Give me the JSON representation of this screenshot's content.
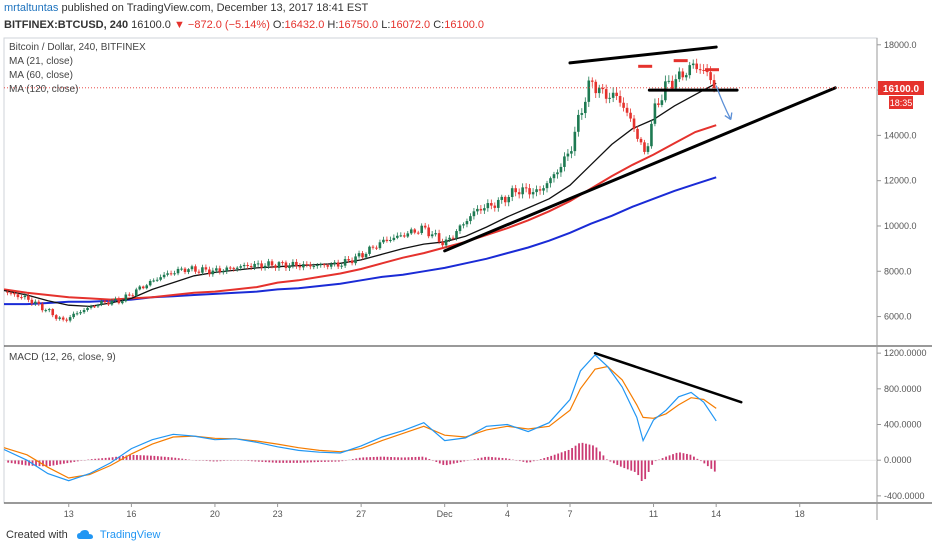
{
  "header": {
    "author": "mrtaltuntas",
    "published_text": "published on TradingView.com, December 13, 2017 18:41 EST",
    "symbol": "BITFINEX:BTCUSD, 240",
    "last": "16100.0",
    "change": "▼ −872.0 (−5.14%)",
    "open_label": "O:",
    "open": "16432.0",
    "high_label": "H:",
    "high": "16750.0",
    "low_label": "L:",
    "low": "16072.0",
    "close_label": "C:",
    "close": "16100.0"
  },
  "legend": {
    "symbol_line": "Bitcoin / Dollar, 240, BITFINEX",
    "ma21": "MA (21, close)",
    "ma60": "MA (60, close)",
    "ma120": "MA (120, close)",
    "macd": "MACD (12, 26, close, 9)"
  },
  "price_badge": {
    "price": "16100.0",
    "countdown": "18:35",
    "color": "#e5322d"
  },
  "footer": {
    "created_with": "Created with",
    "brand": "TradingView"
  },
  "colors": {
    "up": "#1d7a52",
    "down": "#e5322d",
    "ma21": "#111111",
    "ma60": "#e5322d",
    "ma120": "#1a2bd6",
    "macd_line": "#2196f3",
    "signal_line": "#f57c00",
    "hist_pos": "#c2185b",
    "hist_neg": "#c2185b",
    "arrow": "#5b8fd6"
  },
  "chart_data": [
    {
      "type": "candlestick",
      "title": "Bitcoin / Dollar, 240, BITFINEX",
      "x_ticks": [
        "13",
        "16",
        "20",
        "23",
        "27",
        "Dec",
        "4",
        "7",
        "11",
        "14",
        "18"
      ],
      "x_tick_days": [
        13,
        16,
        20,
        23,
        27,
        31,
        34,
        37,
        41,
        44,
        48
      ],
      "x_range_days": [
        9.9,
        51.7
      ],
      "y_ticks": [
        6000,
        8000,
        10000,
        12000,
        14000,
        16000,
        18000
      ],
      "y_tick_labels": [
        "6000.0",
        "8000.0",
        "10000.0",
        "12000.0",
        "14000.0",
        "16000.0",
        "18000.0"
      ],
      "ylim": [
        4700,
        18300
      ],
      "last_price": 16100,
      "close_anchors": [
        [
          9.9,
          7100
        ],
        [
          11,
          6800
        ],
        [
          12,
          6250
        ],
        [
          12.7,
          5800
        ],
        [
          13.5,
          6200
        ],
        [
          14.5,
          6600
        ],
        [
          15.5,
          6700
        ],
        [
          16.5,
          7300
        ],
        [
          17.5,
          7800
        ],
        [
          18.5,
          8100
        ],
        [
          20,
          8000
        ],
        [
          21.5,
          8250
        ],
        [
          23,
          8300
        ],
        [
          24.5,
          8250
        ],
        [
          26,
          8300
        ],
        [
          27,
          8700
        ],
        [
          28,
          9300
        ],
        [
          29,
          9600
        ],
        [
          30,
          9900
        ],
        [
          31,
          9200
        ],
        [
          31.6,
          9800
        ],
        [
          32.5,
          10700
        ],
        [
          33.5,
          11000
        ],
        [
          34.5,
          11600
        ],
        [
          35.5,
          11500
        ],
        [
          36.3,
          12300
        ],
        [
          37,
          13300
        ],
        [
          37.5,
          15000
        ],
        [
          38,
          16400
        ],
        [
          38.6,
          15800
        ],
        [
          39.3,
          15700
        ],
        [
          40,
          14500
        ],
        [
          40.6,
          13100
        ],
        [
          41,
          15000
        ],
        [
          41.6,
          16200
        ],
        [
          42.3,
          16600
        ],
        [
          42.9,
          17100
        ],
        [
          43.5,
          16800
        ],
        [
          44,
          16100
        ]
      ],
      "ma21": [
        [
          9.9,
          7150
        ],
        [
          11,
          6950
        ],
        [
          12,
          6700
        ],
        [
          13,
          6500
        ],
        [
          14,
          6450
        ],
        [
          15,
          6600
        ],
        [
          16,
          6800
        ],
        [
          17,
          7200
        ],
        [
          18,
          7500
        ],
        [
          19,
          7800
        ],
        [
          20,
          7950
        ],
        [
          21,
          8050
        ],
        [
          22,
          8150
        ],
        [
          23,
          8200
        ],
        [
          24,
          8250
        ],
        [
          25,
          8300
        ],
        [
          26,
          8350
        ],
        [
          27,
          8500
        ],
        [
          28,
          8750
        ],
        [
          29,
          9000
        ],
        [
          30,
          9200
        ],
        [
          31,
          9300
        ],
        [
          32,
          9550
        ],
        [
          33,
          9950
        ],
        [
          34,
          10400
        ],
        [
          35,
          10800
        ],
        [
          36,
          11200
        ],
        [
          37,
          11800
        ],
        [
          38,
          12700
        ],
        [
          39,
          13600
        ],
        [
          40,
          14300
        ],
        [
          41,
          14700
        ],
        [
          42,
          15300
        ],
        [
          43,
          15800
        ],
        [
          43.6,
          16100
        ],
        [
          44,
          16300
        ]
      ],
      "ma60": [
        [
          9.9,
          7200
        ],
        [
          11,
          7050
        ],
        [
          12,
          6950
        ],
        [
          13,
          6850
        ],
        [
          14,
          6800
        ],
        [
          15,
          6750
        ],
        [
          16,
          6800
        ],
        [
          17,
          6850
        ],
        [
          18,
          6950
        ],
        [
          19,
          7050
        ],
        [
          20,
          7100
        ],
        [
          21,
          7200
        ],
        [
          22,
          7300
        ],
        [
          23,
          7500
        ],
        [
          24,
          7600
        ],
        [
          25,
          7750
        ],
        [
          26,
          7900
        ],
        [
          27,
          8100
        ],
        [
          28,
          8350
        ],
        [
          29,
          8600
        ],
        [
          30,
          8800
        ],
        [
          31,
          9050
        ],
        [
          32,
          9300
        ],
        [
          33,
          9600
        ],
        [
          34,
          9900
        ],
        [
          35,
          10250
        ],
        [
          36,
          10650
        ],
        [
          37,
          11100
        ],
        [
          38,
          11650
        ],
        [
          39,
          12200
        ],
        [
          40,
          12700
        ],
        [
          41,
          13150
        ],
        [
          42,
          13650
        ],
        [
          43,
          14150
        ],
        [
          44,
          14450
        ]
      ],
      "ma120": [
        [
          9.9,
          6550
        ],
        [
          11,
          6550
        ],
        [
          12,
          6600
        ],
        [
          13,
          6650
        ],
        [
          14,
          6650
        ],
        [
          15,
          6700
        ],
        [
          16,
          6750
        ],
        [
          17,
          6850
        ],
        [
          18,
          6900
        ],
        [
          19,
          6950
        ],
        [
          20,
          7000
        ],
        [
          21,
          7050
        ],
        [
          22,
          7100
        ],
        [
          23,
          7200
        ],
        [
          24,
          7250
        ],
        [
          25,
          7350
        ],
        [
          26,
          7450
        ],
        [
          27,
          7600
        ],
        [
          28,
          7750
        ],
        [
          29,
          7850
        ],
        [
          30,
          8000
        ],
        [
          31,
          8150
        ],
        [
          32,
          8350
        ],
        [
          33,
          8550
        ],
        [
          34,
          8800
        ],
        [
          35,
          9050
        ],
        [
          36,
          9350
        ],
        [
          37,
          9700
        ],
        [
          38,
          10100
        ],
        [
          39,
          10450
        ],
        [
          40,
          10850
        ],
        [
          41,
          11200
        ],
        [
          42,
          11550
        ],
        [
          43,
          11850
        ],
        [
          44,
          12150
        ]
      ],
      "annotations": {
        "wedge_upper": [
          [
            37,
            17200
          ],
          [
            44,
            17900
          ]
        ],
        "wedge_lower": [
          [
            31,
            8900
          ],
          [
            49.7,
            16100
          ]
        ],
        "neckline": [
          [
            40.8,
            16000
          ],
          [
            45,
            16000
          ]
        ],
        "heads": [
          [
            40.6,
            17050
          ],
          [
            42.3,
            17300
          ],
          [
            43.8,
            16900
          ]
        ],
        "projection_arrow": [
          [
            44,
            16200
          ],
          [
            44.7,
            14700
          ]
        ]
      }
    },
    {
      "type": "line",
      "title": "MACD (12, 26, close, 9)",
      "y_ticks": [
        -400,
        0,
        400,
        800,
        1200
      ],
      "y_tick_labels": [
        "-400.0000",
        "0.0000",
        "400.0000",
        "800.0000",
        "1200.0000"
      ],
      "ylim": [
        -480,
        1280
      ],
      "series": [
        {
          "name": "MACD",
          "points": [
            [
              9.9,
              120
            ],
            [
              11,
              0
            ],
            [
              12,
              -150
            ],
            [
              13,
              -230
            ],
            [
              14,
              -150
            ],
            [
              15,
              -30
            ],
            [
              16,
              130
            ],
            [
              17,
              230
            ],
            [
              18,
              290
            ],
            [
              19,
              270
            ],
            [
              20,
              230
            ],
            [
              21,
              240
            ],
            [
              22,
              200
            ],
            [
              23,
              150
            ],
            [
              24,
              110
            ],
            [
              25,
              90
            ],
            [
              26,
              80
            ],
            [
              27,
              160
            ],
            [
              28,
              260
            ],
            [
              29,
              330
            ],
            [
              30,
              420
            ],
            [
              31,
              220
            ],
            [
              32,
              250
            ],
            [
              33,
              380
            ],
            [
              34,
              400
            ],
            [
              35,
              320
            ],
            [
              36,
              420
            ],
            [
              37,
              680
            ],
            [
              37.5,
              1000
            ],
            [
              38.2,
              1180
            ],
            [
              38.8,
              1050
            ],
            [
              39.5,
              820
            ],
            [
              40.2,
              480
            ],
            [
              40.5,
              220
            ],
            [
              41,
              450
            ],
            [
              41.6,
              560
            ],
            [
              42.2,
              710
            ],
            [
              42.8,
              760
            ],
            [
              43.4,
              650
            ],
            [
              44,
              440
            ]
          ]
        },
        {
          "name": "Signal",
          "points": [
            [
              9.9,
              140
            ],
            [
              11,
              60
            ],
            [
              12,
              -80
            ],
            [
              13,
              -200
            ],
            [
              14,
              -160
            ],
            [
              15,
              -60
            ],
            [
              16,
              70
            ],
            [
              17,
              180
            ],
            [
              18,
              260
            ],
            [
              19,
              270
            ],
            [
              20,
              245
            ],
            [
              21,
              240
            ],
            [
              22,
              215
            ],
            [
              23,
              180
            ],
            [
              24,
              140
            ],
            [
              25,
              110
            ],
            [
              26,
              95
            ],
            [
              27,
              130
            ],
            [
              28,
              220
            ],
            [
              29,
              300
            ],
            [
              30,
              380
            ],
            [
              31,
              280
            ],
            [
              32,
              260
            ],
            [
              33,
              340
            ],
            [
              34,
              380
            ],
            [
              35,
              350
            ],
            [
              36,
              380
            ],
            [
              37,
              560
            ],
            [
              37.5,
              800
            ],
            [
              38.2,
              1020
            ],
            [
              38.8,
              1050
            ],
            [
              39.5,
              900
            ],
            [
              40.2,
              620
            ],
            [
              40.5,
              480
            ],
            [
              41,
              470
            ],
            [
              41.6,
              520
            ],
            [
              42.2,
              620
            ],
            [
              42.8,
              700
            ],
            [
              43.4,
              680
            ],
            [
              44,
              580
            ]
          ]
        }
      ],
      "annotations": {
        "divergence_line": [
          [
            38.2,
            1200
          ],
          [
            45.2,
            650
          ]
        ]
      }
    }
  ]
}
